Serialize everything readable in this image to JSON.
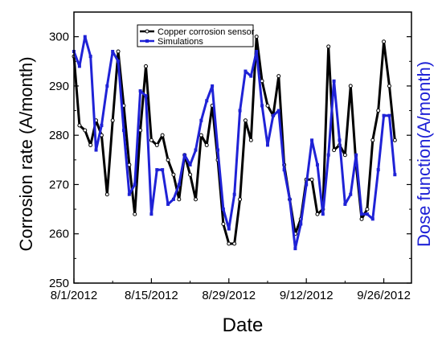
{
  "chart_data": {
    "type": "line",
    "xlabel": "Date",
    "ylabel": "Corrosion rate (A/month)",
    "y2label": "Dose function(A/month)",
    "ylim": [
      250,
      305
    ],
    "y2lim": [
      250,
      305
    ],
    "yticks": [
      250,
      260,
      270,
      280,
      290,
      300
    ],
    "xlim": [
      "2012-08-01",
      "2012-10-01"
    ],
    "xticks": [
      "2012-08-01",
      "2012-08-15",
      "2012-08-29",
      "2012-09-12",
      "2012-09-26"
    ],
    "xtick_labels": [
      "8/1/2012",
      "8/15/2012",
      "8/29/2012",
      "9/12/2012",
      "9/26/2012"
    ],
    "legend_position": "top-left",
    "grid": false,
    "series": [
      {
        "name": "Copper corrosion sensor",
        "color": "#000000",
        "marker": "open-circle",
        "points": [
          [
            "2012-08-01",
            296
          ],
          [
            "2012-08-02",
            282
          ],
          [
            "2012-08-03",
            281
          ],
          [
            "2012-08-04",
            278
          ],
          [
            "2012-08-05",
            283
          ],
          [
            "2012-08-06",
            280
          ],
          [
            "2012-08-07",
            268
          ],
          [
            "2012-08-08",
            283
          ],
          [
            "2012-08-09",
            297
          ],
          [
            "2012-08-10",
            286
          ],
          [
            "2012-08-11",
            274
          ],
          [
            "2012-08-12",
            264
          ],
          [
            "2012-08-13",
            281
          ],
          [
            "2012-08-14",
            294
          ],
          [
            "2012-08-15",
            279
          ],
          [
            "2012-08-16",
            278
          ],
          [
            "2012-08-17",
            280
          ],
          [
            "2012-08-18",
            275
          ],
          [
            "2012-08-19",
            272
          ],
          [
            "2012-08-20",
            267
          ],
          [
            "2012-08-21",
            276
          ],
          [
            "2012-08-22",
            272
          ],
          [
            "2012-08-23",
            267
          ],
          [
            "2012-08-24",
            280
          ],
          [
            "2012-08-25",
            278
          ],
          [
            "2012-08-26",
            286
          ],
          [
            "2012-08-27",
            275
          ],
          [
            "2012-08-28",
            262
          ],
          [
            "2012-08-29",
            258
          ],
          [
            "2012-08-30",
            258
          ],
          [
            "2012-08-31",
            267
          ],
          [
            "2012-09-01",
            283
          ],
          [
            "2012-09-02",
            279
          ],
          [
            "2012-09-03",
            300
          ],
          [
            "2012-09-04",
            291
          ],
          [
            "2012-09-05",
            286
          ],
          [
            "2012-09-06",
            284
          ],
          [
            "2012-09-07",
            292
          ],
          [
            "2012-09-08",
            274
          ],
          [
            "2012-09-09",
            267
          ],
          [
            "2012-09-10",
            260
          ],
          [
            "2012-09-11",
            263
          ],
          [
            "2012-09-12",
            271
          ],
          [
            "2012-09-13",
            271
          ],
          [
            "2012-09-14",
            264
          ],
          [
            "2012-09-15",
            265
          ],
          [
            "2012-09-16",
            298
          ],
          [
            "2012-09-17",
            277
          ],
          [
            "2012-09-18",
            278
          ],
          [
            "2012-09-19",
            276
          ],
          [
            "2012-09-20",
            290
          ],
          [
            "2012-09-21",
            274
          ],
          [
            "2012-09-22",
            263
          ],
          [
            "2012-09-23",
            265
          ],
          [
            "2012-09-24",
            279
          ],
          [
            "2012-09-25",
            285
          ],
          [
            "2012-09-26",
            299
          ],
          [
            "2012-09-27",
            290
          ],
          [
            "2012-09-28",
            279
          ]
        ]
      },
      {
        "name": "Simulations",
        "color": "#1f22d6",
        "marker": "filled-square",
        "points": [
          [
            "2012-08-01",
            297
          ],
          [
            "2012-08-02",
            294
          ],
          [
            "2012-08-03",
            300
          ],
          [
            "2012-08-04",
            296
          ],
          [
            "2012-08-05",
            277
          ],
          [
            "2012-08-06",
            282
          ],
          [
            "2012-08-07",
            290
          ],
          [
            "2012-08-08",
            297
          ],
          [
            "2012-08-09",
            295
          ],
          [
            "2012-08-10",
            281
          ],
          [
            "2012-08-11",
            268
          ],
          [
            "2012-08-12",
            270
          ],
          [
            "2012-08-13",
            289
          ],
          [
            "2012-08-14",
            288
          ],
          [
            "2012-08-15",
            264
          ],
          [
            "2012-08-16",
            273
          ],
          [
            "2012-08-17",
            273
          ],
          [
            "2012-08-18",
            266
          ],
          [
            "2012-08-19",
            267
          ],
          [
            "2012-08-20",
            270
          ],
          [
            "2012-08-21",
            276
          ],
          [
            "2012-08-22",
            274
          ],
          [
            "2012-08-23",
            277
          ],
          [
            "2012-08-24",
            283
          ],
          [
            "2012-08-25",
            287
          ],
          [
            "2012-08-26",
            290
          ],
          [
            "2012-08-27",
            277
          ],
          [
            "2012-08-28",
            265
          ],
          [
            "2012-08-29",
            261
          ],
          [
            "2012-08-30",
            268
          ],
          [
            "2012-08-31",
            285
          ],
          [
            "2012-09-01",
            293
          ],
          [
            "2012-09-02",
            292
          ],
          [
            "2012-09-03",
            297
          ],
          [
            "2012-09-04",
            286
          ],
          [
            "2012-09-05",
            278
          ],
          [
            "2012-09-06",
            284
          ],
          [
            "2012-09-07",
            285
          ],
          [
            "2012-09-08",
            273
          ],
          [
            "2012-09-09",
            267
          ],
          [
            "2012-09-10",
            257
          ],
          [
            "2012-09-11",
            262
          ],
          [
            "2012-09-12",
            270
          ],
          [
            "2012-09-13",
            279
          ],
          [
            "2012-09-14",
            274
          ],
          [
            "2012-09-15",
            264
          ],
          [
            "2012-09-16",
            276
          ],
          [
            "2012-09-17",
            291
          ],
          [
            "2012-09-18",
            279
          ],
          [
            "2012-09-19",
            266
          ],
          [
            "2012-09-20",
            268
          ],
          [
            "2012-09-21",
            276
          ],
          [
            "2012-09-22",
            264
          ],
          [
            "2012-09-23",
            264
          ],
          [
            "2012-09-24",
            263
          ],
          [
            "2012-09-25",
            273
          ],
          [
            "2012-09-26",
            284
          ],
          [
            "2012-09-27",
            284
          ],
          [
            "2012-09-28",
            272
          ]
        ]
      }
    ]
  }
}
